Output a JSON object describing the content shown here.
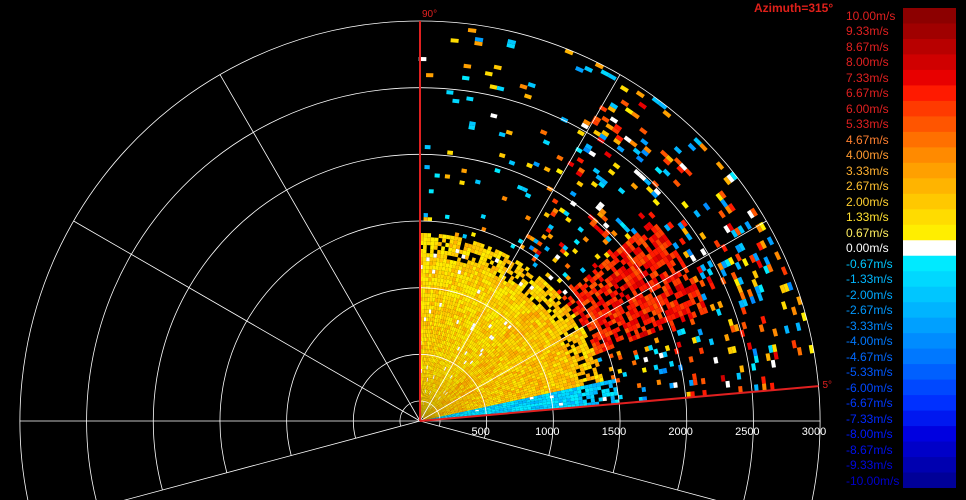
{
  "chart_data": {
    "type": "polar-sector-scan",
    "title": "Azimuth=315°",
    "range_ticks": [
      500,
      1000,
      1500,
      2000,
      2500,
      3000
    ],
    "range_max": 3000,
    "ring_step": 500,
    "spoke_angles_deg": [
      -15,
      0,
      30,
      60,
      90,
      120,
      150,
      180,
      195
    ],
    "sector_start_label": "5°",
    "sector_end_label": "90°",
    "sector_start_deg": 5,
    "sector_end_deg": 90,
    "colorbar": {
      "labels": [
        "10.00m/s",
        "9.33m/s",
        "8.67m/s",
        "8.00m/s",
        "7.33m/s",
        "6.67m/s",
        "6.00m/s",
        "5.33m/s",
        "4.67m/s",
        "4.00m/s",
        "3.33m/s",
        "2.67m/s",
        "2.00m/s",
        "1.33m/s",
        "0.67m/s",
        "0.00m/s",
        "-0.67m/s",
        "-1.33m/s",
        "-2.00m/s",
        "-2.67m/s",
        "-3.33m/s",
        "-4.00m/s",
        "-4.67m/s",
        "-5.33m/s",
        "-6.00m/s",
        "-6.67m/s",
        "-7.33m/s",
        "-8.00m/s",
        "-8.67m/s",
        "-9.33m/s",
        "-10.00m/s"
      ],
      "colors": [
        "#8c0000",
        "#a00000",
        "#b80000",
        "#d00000",
        "#e80000",
        "#ff1a00",
        "#ff3a00",
        "#ff5500",
        "#ff7000",
        "#ff8a00",
        "#ffa000",
        "#ffb400",
        "#ffc800",
        "#ffdc00",
        "#ffee00",
        "#ffffff",
        "#00eaff",
        "#00d8ff",
        "#00c6ff",
        "#00b4ff",
        "#00a0ff",
        "#008cff",
        "#0078ff",
        "#0060ff",
        "#0048ff",
        "#0030ff",
        "#0018f0",
        "#0000e0",
        "#0000c8",
        "#0000b0",
        "#000098"
      ],
      "label_colors": [
        "#e02020",
        "#e02020",
        "#e02020",
        "#e02020",
        "#e02020",
        "#e02020",
        "#e02020",
        "#e02020",
        "#ff8030",
        "#ff9a30",
        "#ffb030",
        "#ffc030",
        "#ffd030",
        "#ffe030",
        "#ffee60",
        "#ffffff",
        "#00c8ff",
        "#00b8ff",
        "#00a8ff",
        "#0098ff",
        "#0088ff",
        "#0078ff",
        "#0068ff",
        "#0058ff",
        "#0048ff",
        "#0038ff",
        "#0028ff",
        "#0018ff",
        "#0010ee",
        "#0008dd",
        "#0000cc"
      ]
    },
    "velocity_field": {
      "description_of_bands": [
        {
          "angle_from_deg": 5,
          "angle_to_deg": 12,
          "range_from": 50,
          "range_to": 1500,
          "value": -1.5
        },
        {
          "angle_from_deg": 12,
          "angle_to_deg": 45,
          "range_from": 30,
          "range_to": 1400,
          "value": 2.0
        },
        {
          "angle_from_deg": 20,
          "angle_to_deg": 40,
          "range_from": 1400,
          "range_to": 2300,
          "value": 6.5
        },
        {
          "angle_from_deg": 45,
          "angle_to_deg": 90,
          "range_from": 30,
          "range_to": 1400,
          "value": 1.5
        }
      ]
    }
  }
}
